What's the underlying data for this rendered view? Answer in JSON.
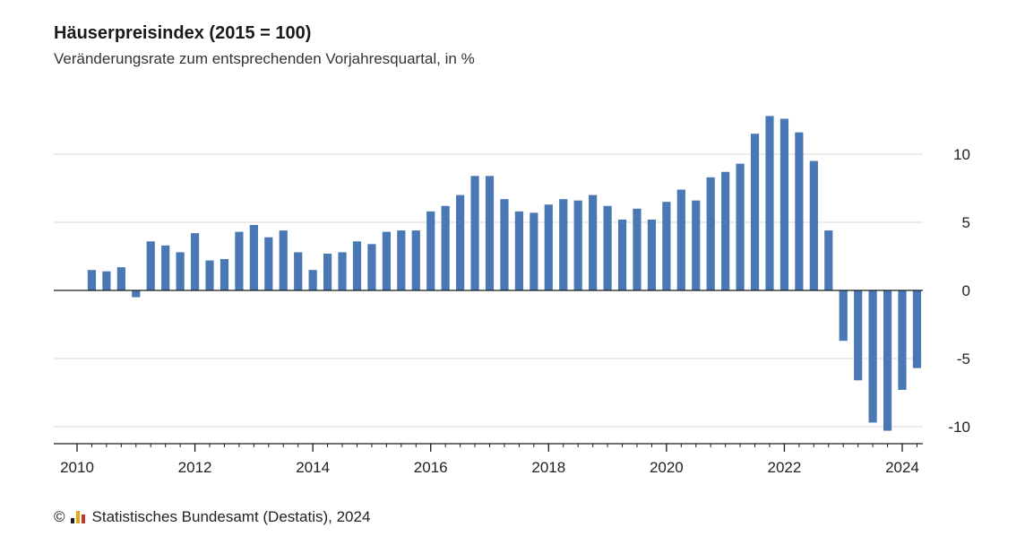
{
  "title": "Häuserpreisindex (2015 = 100)",
  "subtitle": "Veränderungsrate zum entsprechenden Vorjahresquartal, in %",
  "footer": {
    "copyright_symbol": "©",
    "source_text": "Statistisches Bundesamt (Destatis), 2024",
    "logo_icon": "destatis-logo-icon"
  },
  "colors": {
    "bar": "#4a78b5",
    "grid": "#d9d9d9",
    "axis": "#1a1a1a"
  },
  "chart_data": {
    "type": "bar",
    "title": "Häuserpreisindex (2015 = 100)",
    "subtitle": "Veränderungsrate zum entsprechenden Vorjahresquartal, in %",
    "categories": [
      "2010 Q2",
      "2010 Q3",
      "2010 Q4",
      "2011 Q1",
      "2011 Q2",
      "2011 Q3",
      "2011 Q4",
      "2012 Q1",
      "2012 Q2",
      "2012 Q3",
      "2012 Q4",
      "2013 Q1",
      "2013 Q2",
      "2013 Q3",
      "2013 Q4",
      "2014 Q1",
      "2014 Q2",
      "2014 Q3",
      "2014 Q4",
      "2015 Q1",
      "2015 Q2",
      "2015 Q3",
      "2015 Q4",
      "2016 Q1",
      "2016 Q2",
      "2016 Q3",
      "2016 Q4",
      "2017 Q1",
      "2017 Q2",
      "2017 Q3",
      "2017 Q4",
      "2018 Q1",
      "2018 Q2",
      "2018 Q3",
      "2018 Q4",
      "2019 Q1",
      "2019 Q2",
      "2019 Q3",
      "2019 Q4",
      "2020 Q1",
      "2020 Q2",
      "2020 Q3",
      "2020 Q4",
      "2021 Q1",
      "2021 Q2",
      "2021 Q3",
      "2021 Q4",
      "2022 Q1",
      "2022 Q2",
      "2022 Q3",
      "2022 Q4",
      "2023 Q1",
      "2023 Q2",
      "2023 Q3",
      "2023 Q4",
      "2024 Q1",
      "2024 Q2"
    ],
    "values": [
      1.5,
      1.4,
      1.7,
      -0.5,
      3.6,
      3.3,
      2.8,
      4.2,
      2.2,
      2.3,
      4.3,
      4.8,
      3.9,
      4.4,
      2.8,
      1.5,
      2.7,
      2.8,
      3.6,
      3.4,
      4.3,
      4.4,
      4.4,
      5.8,
      6.2,
      7.0,
      8.4,
      8.4,
      6.7,
      5.8,
      5.7,
      6.3,
      6.7,
      6.6,
      7.0,
      6.2,
      5.2,
      6.0,
      5.2,
      6.5,
      7.4,
      6.6,
      8.3,
      8.7,
      9.3,
      11.5,
      12.8,
      12.6,
      11.6,
      9.5,
      4.4,
      -3.7,
      -6.6,
      -9.7,
      -10.3,
      -7.3,
      -5.7
    ],
    "yticks": [
      10,
      5,
      0,
      -5,
      -10
    ],
    "ylim": [
      -11.2,
      13.5
    ],
    "xlim": [
      2010.0,
      2024.5
    ],
    "xticks": [
      2010,
      2012,
      2014,
      2016,
      2018,
      2020,
      2022,
      2024
    ],
    "x_start": 2010.25,
    "grid": true,
    "legend": "none"
  }
}
